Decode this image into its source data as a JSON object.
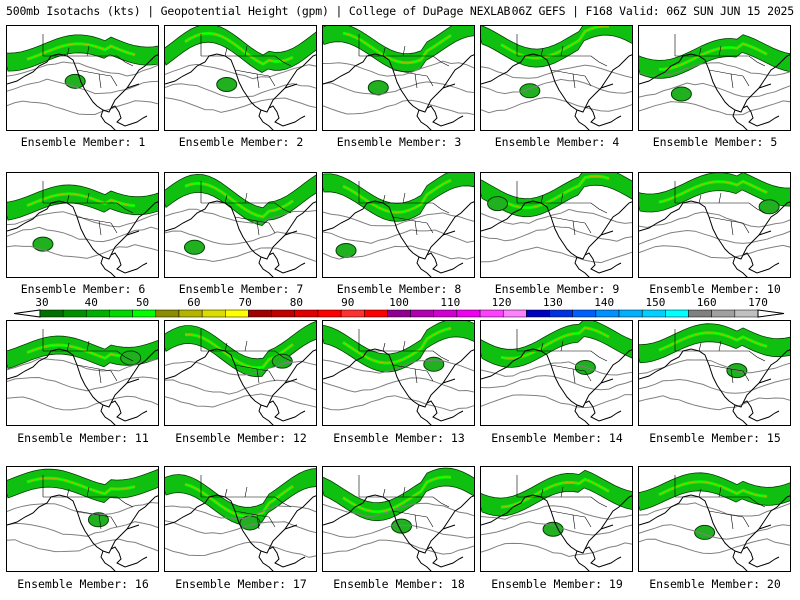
{
  "header": {
    "title_left": "500mb Isotachs (kts) | Geopotential Height (gpm) | College of DuPage NEXLAB",
    "title_right": "06Z GEFS | F168 Valid: 06Z SUN JUN 15 2025"
  },
  "panels": [
    {
      "caption": "Ensemble Member: 1"
    },
    {
      "caption": "Ensemble Member: 2"
    },
    {
      "caption": "Ensemble Member: 3"
    },
    {
      "caption": "Ensemble Member: 4"
    },
    {
      "caption": "Ensemble Member: 5"
    },
    {
      "caption": "Ensemble Member: 6"
    },
    {
      "caption": "Ensemble Member: 7"
    },
    {
      "caption": "Ensemble Member: 8"
    },
    {
      "caption": "Ensemble Member: 9"
    },
    {
      "caption": "Ensemble Member: 10"
    },
    {
      "caption": "Ensemble Member: 11"
    },
    {
      "caption": "Ensemble Member: 12"
    },
    {
      "caption": "Ensemble Member: 13"
    },
    {
      "caption": "Ensemble Member: 14"
    },
    {
      "caption": "Ensemble Member: 15"
    },
    {
      "caption": "Ensemble Member: 16"
    },
    {
      "caption": "Ensemble Member: 17"
    },
    {
      "caption": "Ensemble Member: 18"
    },
    {
      "caption": "Ensemble Member: 19"
    },
    {
      "caption": "Ensemble Member: 20"
    }
  ],
  "colorbar": {
    "labels": [
      "30",
      "40",
      "50",
      "60",
      "70",
      "80",
      "90",
      "100",
      "110",
      "120",
      "130",
      "140",
      "150",
      "160",
      "170"
    ],
    "colors": [
      "#007000",
      "#009000",
      "#00b000",
      "#00d800",
      "#00ff00",
      "#8c8c00",
      "#b4b400",
      "#dcdc00",
      "#ffff00",
      "#a00000",
      "#c00000",
      "#e00000",
      "#ff0000",
      "#ff3030",
      "#ff0000",
      "#900090",
      "#b000b0",
      "#d000d0",
      "#f000f0",
      "#ff40ff",
      "#ff80ff",
      "#0000c0",
      "#0030e0",
      "#0060ff",
      "#0090ff",
      "#00b0ff",
      "#00d0ff",
      "#00ffff",
      "#808080",
      "#a0a0a0",
      "#c0c0c0"
    ]
  }
}
